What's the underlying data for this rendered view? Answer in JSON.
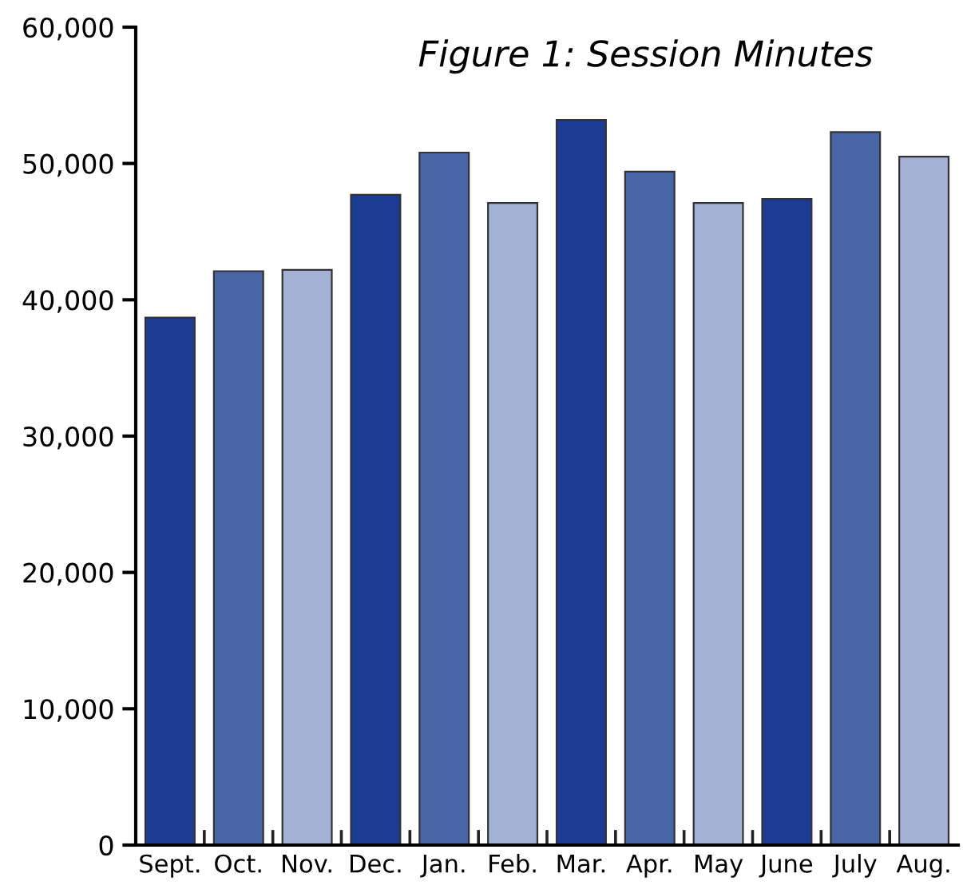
{
  "chart_data": {
    "type": "bar",
    "title": "Figure 1: Session Minutes",
    "categories": [
      "Sept.",
      "Oct.",
      "Nov.",
      "Dec.",
      "Jan.",
      "Feb.",
      "Mar.",
      "Apr.",
      "May",
      "June",
      "July",
      "Aug."
    ],
    "values": [
      38700,
      42100,
      42200,
      47700,
      50800,
      47100,
      53200,
      49400,
      47100,
      47400,
      52300,
      50500
    ],
    "colors": [
      "#1c3c94",
      "#4865a8",
      "#a3b2d4",
      "#1c3c94",
      "#4865a8",
      "#a3b2d4",
      "#1c3c94",
      "#4865a8",
      "#a3b2d4",
      "#1c3c94",
      "#4865a8",
      "#a3b2d4"
    ],
    "ylim": [
      0,
      60000
    ],
    "yticks": [
      {
        "value": 0,
        "label": "0"
      },
      {
        "value": 10000,
        "label": "10,000"
      },
      {
        "value": 20000,
        "label": "20,000"
      },
      {
        "value": 30000,
        "label": "30,000"
      },
      {
        "value": 40000,
        "label": "40,000"
      },
      {
        "value": 50000,
        "label": "50,000"
      },
      {
        "value": 60000,
        "label": "60,000"
      }
    ],
    "grid": false,
    "legend": false
  }
}
